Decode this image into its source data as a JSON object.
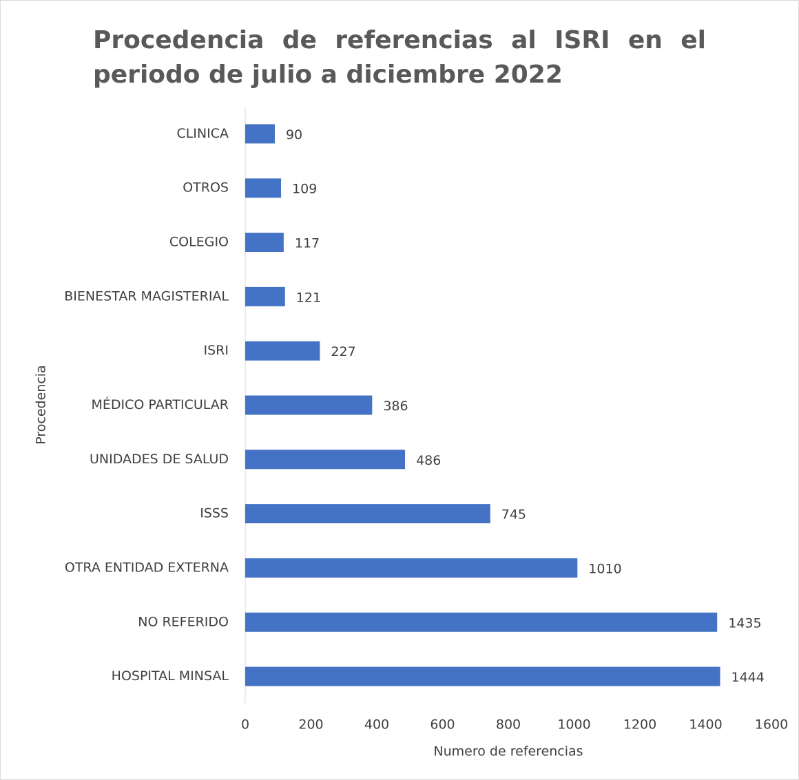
{
  "chart_data": {
    "type": "bar",
    "orientation": "horizontal",
    "title": "Procedencia de referencias al ISRI en el periodo de julio a diciembre 2022",
    "xlabel": "Numero de referencias",
    "ylabel": "Procedencia",
    "categories": [
      "CLINICA",
      "OTROS",
      "COLEGIO",
      "BIENESTAR MAGISTERIAL",
      "ISRI",
      "MÉDICO PARTICULAR",
      "UNIDADES DE SALUD",
      "ISSS",
      "OTRA ENTIDAD EXTERNA",
      "NO REFERIDO",
      "HOSPITAL MINSAL"
    ],
    "values": [
      90,
      109,
      117,
      121,
      227,
      386,
      486,
      745,
      1010,
      1435,
      1444
    ],
    "color": "#4472c4",
    "xlim": [
      0,
      1600
    ],
    "xticks": [
      0,
      200,
      400,
      600,
      800,
      1000,
      1200,
      1400,
      1600
    ],
    "grid": false
  }
}
